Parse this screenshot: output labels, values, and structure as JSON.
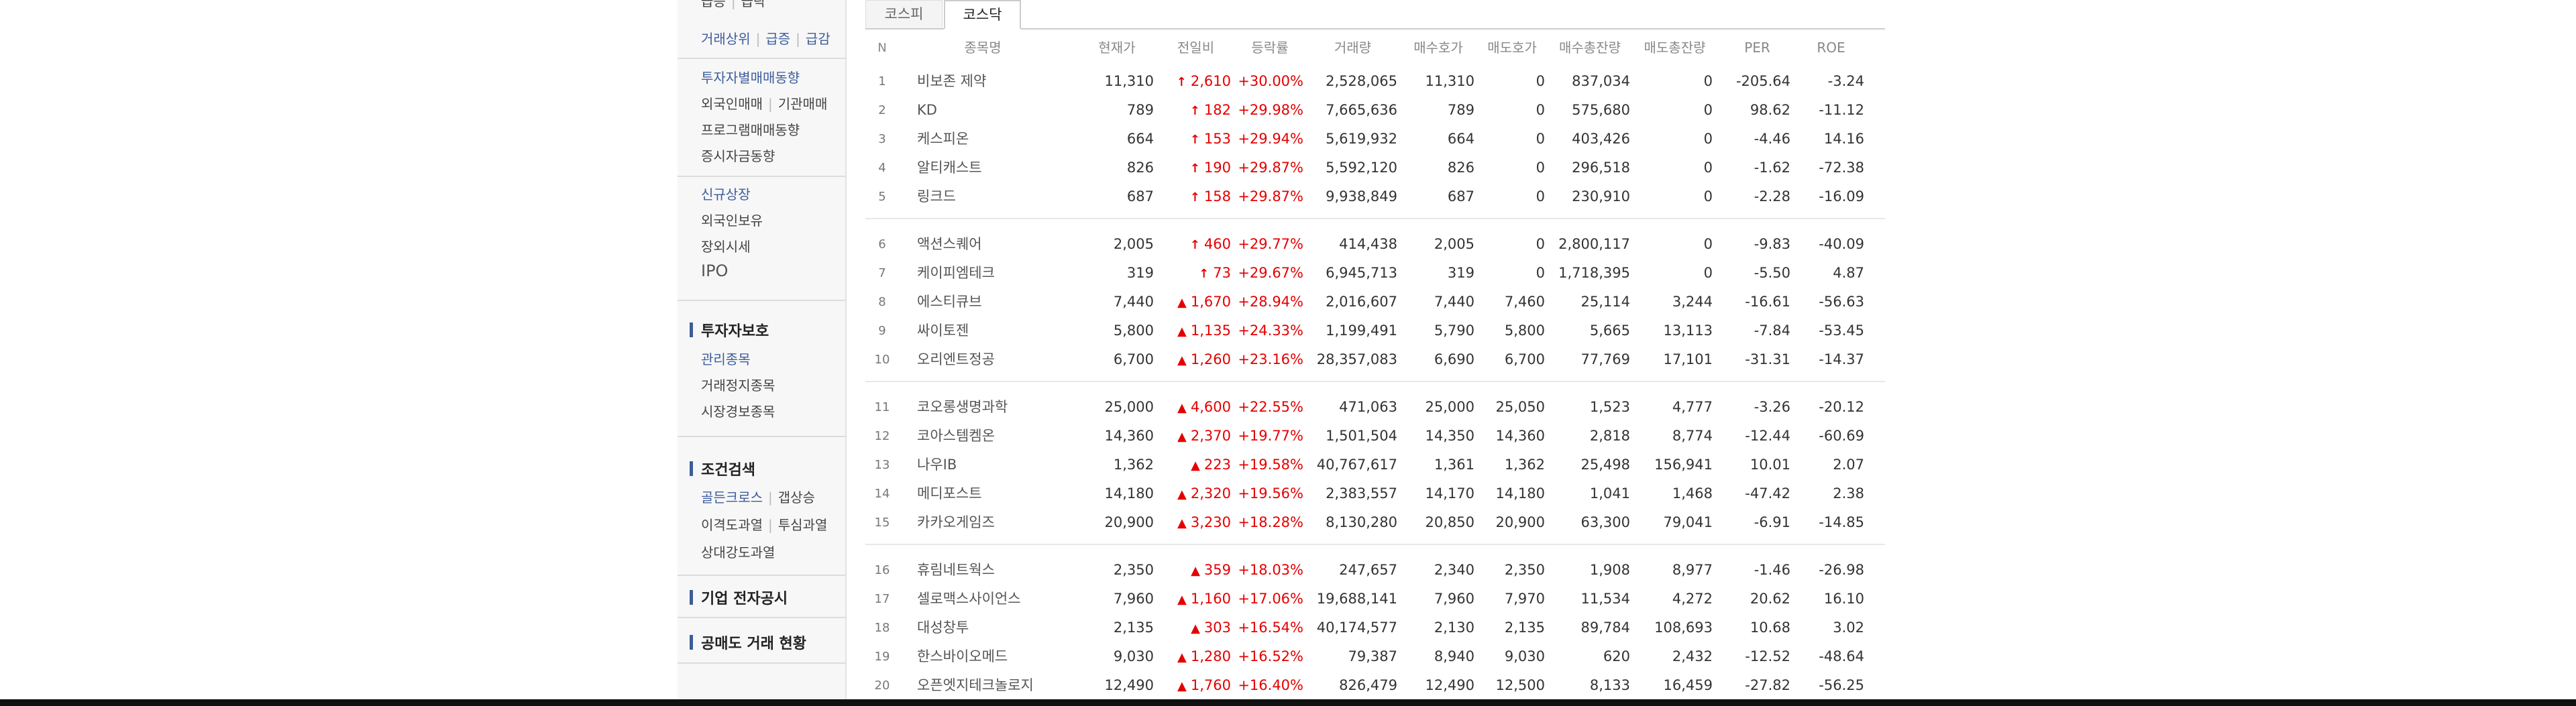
{
  "sidebar": {
    "cut_top": [
      "급등",
      "급락"
    ],
    "top_links": [
      "거래상위",
      "급증",
      "급감"
    ],
    "group1": [
      "투자자별매매동향",
      "외국인매매",
      "기관매매",
      "프로그램매매동향",
      "증시자금동향"
    ],
    "group2": [
      "신규상장",
      "외국인보유",
      "장외시세",
      "IPO"
    ],
    "section_investor": {
      "title": "투자자보호",
      "items": [
        "관리종목",
        "거래정지종목",
        "시장경보종목"
      ]
    },
    "section_search": {
      "title": "조건검색",
      "items": [
        "골든크로스",
        "갭상승",
        "이격도과열",
        "투심과열",
        "상대강도과열"
      ]
    },
    "disclosure": "기업 전자공시",
    "short_sale": "공매도 거래 현황"
  },
  "tabs": [
    "코스피",
    "코스닥"
  ],
  "columns": [
    "N",
    "종목명",
    "현재가",
    "전일비",
    "등락률",
    "거래량",
    "매수호가",
    "매도호가",
    "매수총잔량",
    "매도총잔량",
    "PER",
    "ROE"
  ],
  "rows": [
    {
      "n": "1",
      "name": "비보존 제약",
      "price": "11,310",
      "arrow": "limit",
      "chg": "2,610",
      "rate": "+30.00%",
      "vol": "2,528,065",
      "bid": "11,310",
      "ask": "0",
      "bidsz": "837,034",
      "asksz": "0",
      "per": "-205.64",
      "roe": "-3.24"
    },
    {
      "n": "2",
      "name": "KD",
      "price": "789",
      "arrow": "limit",
      "chg": "182",
      "rate": "+29.98%",
      "vol": "7,665,636",
      "bid": "789",
      "ask": "0",
      "bidsz": "575,680",
      "asksz": "0",
      "per": "98.62",
      "roe": "-11.12"
    },
    {
      "n": "3",
      "name": "케스피온",
      "price": "664",
      "arrow": "limit",
      "chg": "153",
      "rate": "+29.94%",
      "vol": "5,619,932",
      "bid": "664",
      "ask": "0",
      "bidsz": "403,426",
      "asksz": "0",
      "per": "-4.46",
      "roe": "14.16"
    },
    {
      "n": "4",
      "name": "알티캐스트",
      "price": "826",
      "arrow": "limit",
      "chg": "190",
      "rate": "+29.87%",
      "vol": "5,592,120",
      "bid": "826",
      "ask": "0",
      "bidsz": "296,518",
      "asksz": "0",
      "per": "-1.62",
      "roe": "-72.38"
    },
    {
      "n": "5",
      "name": "링크드",
      "price": "687",
      "arrow": "limit",
      "chg": "158",
      "rate": "+29.87%",
      "vol": "9,938,849",
      "bid": "687",
      "ask": "0",
      "bidsz": "230,910",
      "asksz": "0",
      "per": "-2.28",
      "roe": "-16.09"
    },
    {
      "n": "6",
      "name": "액션스퀘어",
      "price": "2,005",
      "arrow": "limit",
      "chg": "460",
      "rate": "+29.77%",
      "vol": "414,438",
      "bid": "2,005",
      "ask": "0",
      "bidsz": "2,800,117",
      "asksz": "0",
      "per": "-9.83",
      "roe": "-40.09"
    },
    {
      "n": "7",
      "name": "케이피엠테크",
      "price": "319",
      "arrow": "limit",
      "chg": "73",
      "rate": "+29.67%",
      "vol": "6,945,713",
      "bid": "319",
      "ask": "0",
      "bidsz": "1,718,395",
      "asksz": "0",
      "per": "-5.50",
      "roe": "4.87"
    },
    {
      "n": "8",
      "name": "에스티큐브",
      "price": "7,440",
      "arrow": "up",
      "chg": "1,670",
      "rate": "+28.94%",
      "vol": "2,016,607",
      "bid": "7,440",
      "ask": "7,460",
      "bidsz": "25,114",
      "asksz": "3,244",
      "per": "-16.61",
      "roe": "-56.63"
    },
    {
      "n": "9",
      "name": "싸이토젠",
      "price": "5,800",
      "arrow": "up",
      "chg": "1,135",
      "rate": "+24.33%",
      "vol": "1,199,491",
      "bid": "5,790",
      "ask": "5,800",
      "bidsz": "5,665",
      "asksz": "13,113",
      "per": "-7.84",
      "roe": "-53.45"
    },
    {
      "n": "10",
      "name": "오리엔트정공",
      "price": "6,700",
      "arrow": "up",
      "chg": "1,260",
      "rate": "+23.16%",
      "vol": "28,357,083",
      "bid": "6,690",
      "ask": "6,700",
      "bidsz": "77,769",
      "asksz": "17,101",
      "per": "-31.31",
      "roe": "-14.37"
    },
    {
      "n": "11",
      "name": "코오롱생명과학",
      "price": "25,000",
      "arrow": "up",
      "chg": "4,600",
      "rate": "+22.55%",
      "vol": "471,063",
      "bid": "25,000",
      "ask": "25,050",
      "bidsz": "1,523",
      "asksz": "4,777",
      "per": "-3.26",
      "roe": "-20.12"
    },
    {
      "n": "12",
      "name": "코아스템켐온",
      "price": "14,360",
      "arrow": "up",
      "chg": "2,370",
      "rate": "+19.77%",
      "vol": "1,501,504",
      "bid": "14,350",
      "ask": "14,360",
      "bidsz": "2,818",
      "asksz": "8,774",
      "per": "-12.44",
      "roe": "-60.69"
    },
    {
      "n": "13",
      "name": "나우IB",
      "price": "1,362",
      "arrow": "up",
      "chg": "223",
      "rate": "+19.58%",
      "vol": "40,767,617",
      "bid": "1,361",
      "ask": "1,362",
      "bidsz": "25,498",
      "asksz": "156,941",
      "per": "10.01",
      "roe": "2.07"
    },
    {
      "n": "14",
      "name": "메디포스트",
      "price": "14,180",
      "arrow": "up",
      "chg": "2,320",
      "rate": "+19.56%",
      "vol": "2,383,557",
      "bid": "14,170",
      "ask": "14,180",
      "bidsz": "1,041",
      "asksz": "1,468",
      "per": "-47.42",
      "roe": "2.38"
    },
    {
      "n": "15",
      "name": "카카오게임즈",
      "price": "20,900",
      "arrow": "up",
      "chg": "3,230",
      "rate": "+18.28%",
      "vol": "8,130,280",
      "bid": "20,850",
      "ask": "20,900",
      "bidsz": "63,300",
      "asksz": "79,041",
      "per": "-6.91",
      "roe": "-14.85"
    },
    {
      "n": "16",
      "name": "휴림네트웍스",
      "price": "2,350",
      "arrow": "up",
      "chg": "359",
      "rate": "+18.03%",
      "vol": "247,657",
      "bid": "2,340",
      "ask": "2,350",
      "bidsz": "1,908",
      "asksz": "8,977",
      "per": "-1.46",
      "roe": "-26.98"
    },
    {
      "n": "17",
      "name": "셀로맥스사이언스",
      "price": "7,960",
      "arrow": "up",
      "chg": "1,160",
      "rate": "+17.06%",
      "vol": "19,688,141",
      "bid": "7,960",
      "ask": "7,970",
      "bidsz": "11,534",
      "asksz": "4,272",
      "per": "20.62",
      "roe": "16.10"
    },
    {
      "n": "18",
      "name": "대성창투",
      "price": "2,135",
      "arrow": "up",
      "chg": "303",
      "rate": "+16.54%",
      "vol": "40,174,577",
      "bid": "2,130",
      "ask": "2,135",
      "bidsz": "89,784",
      "asksz": "108,693",
      "per": "10.68",
      "roe": "3.02"
    },
    {
      "n": "19",
      "name": "한스바이오메드",
      "price": "9,030",
      "arrow": "up",
      "chg": "1,280",
      "rate": "+16.52%",
      "vol": "79,387",
      "bid": "8,940",
      "ask": "9,030",
      "bidsz": "620",
      "asksz": "2,432",
      "per": "-12.52",
      "roe": "-48.64"
    },
    {
      "n": "20",
      "name": "오픈엣지테크놀로지",
      "price": "12,490",
      "arrow": "up",
      "chg": "1,760",
      "rate": "+16.40%",
      "vol": "826,479",
      "bid": "12,490",
      "ask": "12,500",
      "bidsz": "8,133",
      "asksz": "16,459",
      "per": "-27.82",
      "roe": "-56.25"
    }
  ],
  "colors": {
    "up": "#e40000",
    "link_blue": "#3c5d9c"
  },
  "icons": {
    "limit": "up-limit-arrow-icon",
    "up": "up-triangle-icon"
  }
}
